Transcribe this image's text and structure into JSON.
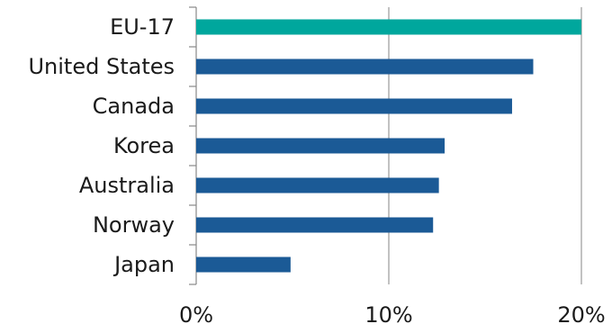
{
  "chart_data": {
    "type": "bar",
    "orientation": "horizontal",
    "categories": [
      "EU-17",
      "United States",
      "Canada",
      "Korea",
      "Australia",
      "Norway",
      "Japan"
    ],
    "values": [
      20,
      17.5,
      16.4,
      12.9,
      12.6,
      12.3,
      4.9
    ],
    "unit": "%",
    "xlim": [
      0,
      20
    ],
    "x_ticks": [
      {
        "value": 0,
        "label": "0%"
      },
      {
        "value": 10,
        "label": "10%"
      },
      {
        "value": 20,
        "label": "20%"
      }
    ],
    "grid": "vertical",
    "legend": "none",
    "colors": {
      "highlight": "#00a79d",
      "default": "#1b5a96",
      "grid": "#9a9a9a",
      "axis": "#888888"
    },
    "highlight_category": "EU-17",
    "title": "",
    "xlabel": "",
    "ylabel": ""
  }
}
